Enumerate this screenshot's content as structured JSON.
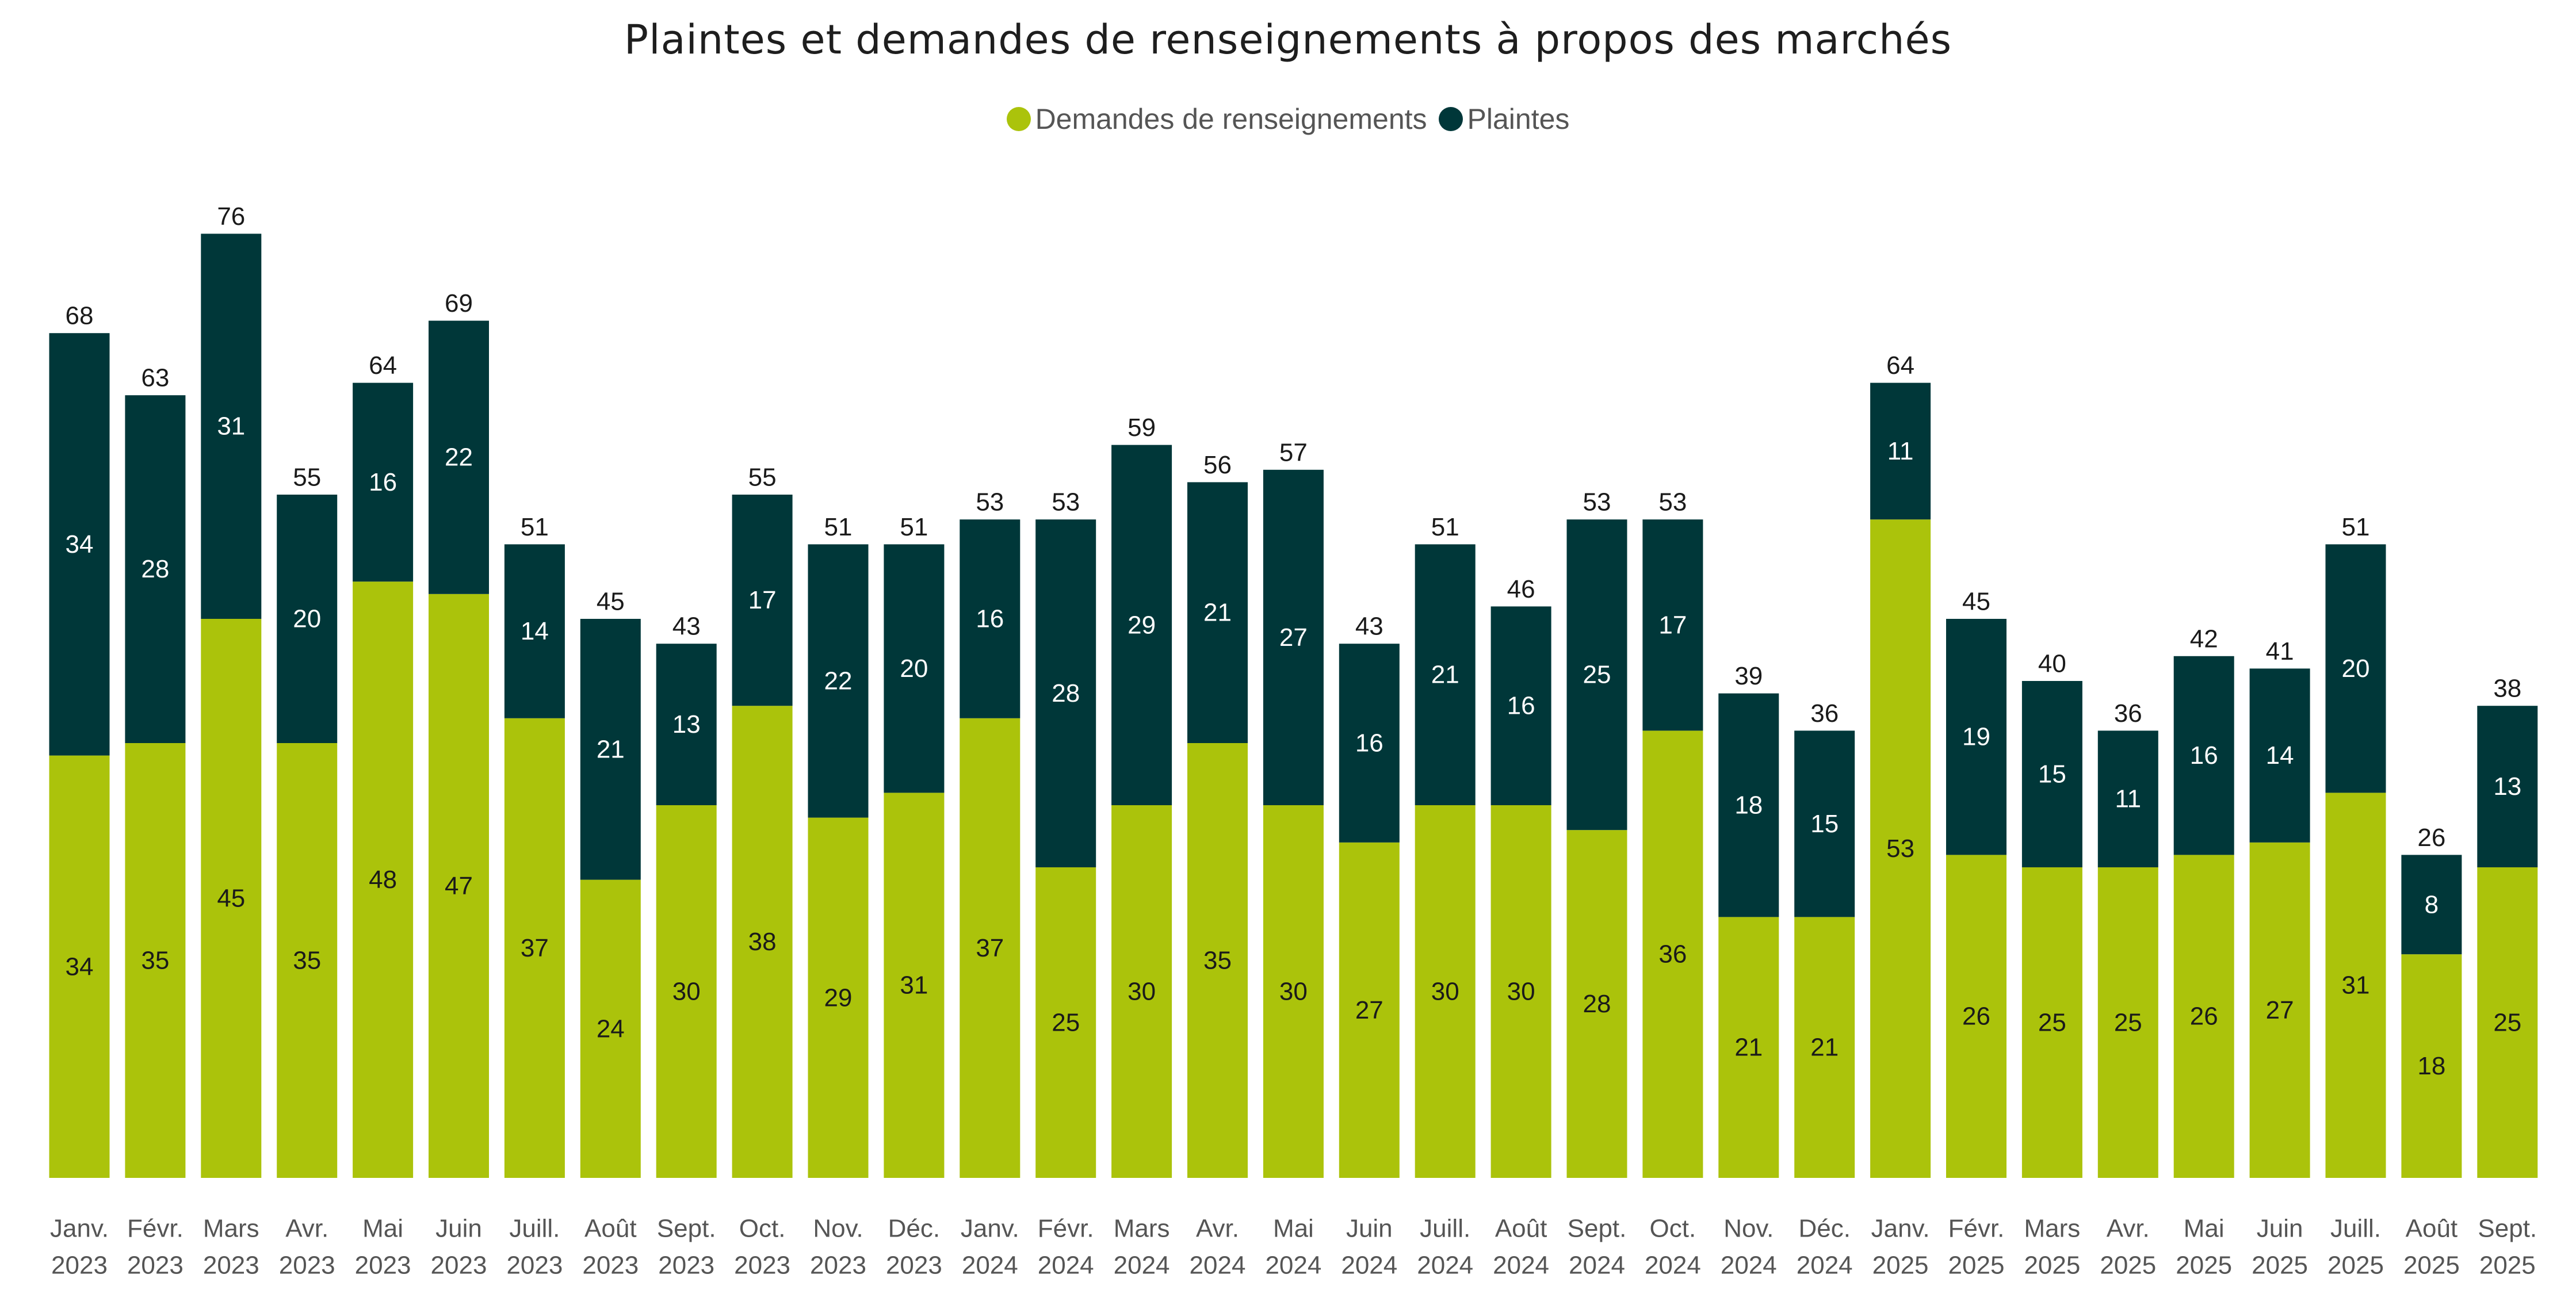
{
  "chart_data": {
    "type": "bar",
    "stacked": true,
    "title": "Plaintes et demandes de renseignements à propos des marchés",
    "categories": [
      [
        "Janv.",
        "2023"
      ],
      [
        "Févr.",
        "2023"
      ],
      [
        "Mars",
        "2023"
      ],
      [
        "Avr.",
        "2023"
      ],
      [
        "Mai",
        "2023"
      ],
      [
        "Juin",
        "2023"
      ],
      [
        "Juill.",
        "2023"
      ],
      [
        "Août",
        "2023"
      ],
      [
        "Sept.",
        "2023"
      ],
      [
        "Oct.",
        "2023"
      ],
      [
        "Nov.",
        "2023"
      ],
      [
        "Déc.",
        "2023"
      ],
      [
        "Janv.",
        "2024"
      ],
      [
        "Févr.",
        "2024"
      ],
      [
        "Mars",
        "2024"
      ],
      [
        "Avr.",
        "2024"
      ],
      [
        "Mai",
        "2024"
      ],
      [
        "Juin",
        "2024"
      ],
      [
        "Juill.",
        "2024"
      ],
      [
        "Août",
        "2024"
      ],
      [
        "Sept.",
        "2024"
      ],
      [
        "Oct.",
        "2024"
      ],
      [
        "Nov.",
        "2024"
      ],
      [
        "Déc.",
        "2024"
      ],
      [
        "Janv.",
        "2025"
      ],
      [
        "Févr.",
        "2025"
      ],
      [
        "Mars",
        "2025"
      ],
      [
        "Avr.",
        "2025"
      ],
      [
        "Mai",
        "2025"
      ],
      [
        "Juin",
        "2025"
      ],
      [
        "Juill.",
        "2025"
      ],
      [
        "Août",
        "2025"
      ],
      [
        "Sept.",
        "2025"
      ]
    ],
    "series": [
      {
        "name": "Demandes de renseignements",
        "color": "#abc30b",
        "label_color": "#1a1a1a",
        "values": [
          34,
          35,
          45,
          35,
          48,
          47,
          37,
          24,
          30,
          38,
          29,
          31,
          37,
          25,
          30,
          35,
          30,
          27,
          30,
          30,
          28,
          36,
          21,
          21,
          53,
          26,
          25,
          25,
          26,
          27,
          31,
          18,
          25
        ]
      },
      {
        "name": "Plaintes",
        "color": "#003739",
        "label_color": "#ffffff",
        "values": [
          34,
          28,
          31,
          20,
          16,
          22,
          14,
          21,
          13,
          17,
          22,
          20,
          16,
          28,
          29,
          21,
          27,
          16,
          21,
          16,
          25,
          17,
          18,
          15,
          11,
          19,
          15,
          11,
          16,
          14,
          20,
          8,
          13
        ]
      }
    ],
    "totals": [
      68,
      63,
      76,
      55,
      64,
      69,
      51,
      45,
      43,
      55,
      51,
      51,
      53,
      53,
      59,
      56,
      57,
      43,
      51,
      46,
      53,
      53,
      39,
      36,
      64,
      45,
      40,
      36,
      42,
      41,
      51,
      26,
      38
    ],
    "legend_position": "top-center",
    "grid": false,
    "ylim": [
      0,
      76
    ]
  }
}
